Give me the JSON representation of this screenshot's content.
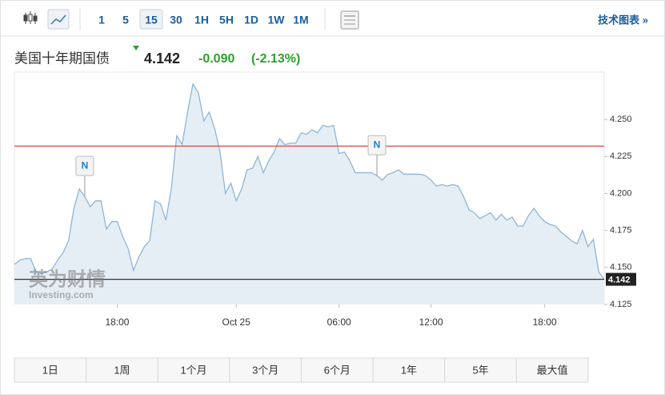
{
  "toolbar": {
    "intervals": [
      "1",
      "5",
      "15",
      "30",
      "1H",
      "5H",
      "1D",
      "1W",
      "1M"
    ],
    "selected_interval": 2,
    "link": "技术图表 »"
  },
  "header": {
    "name": "美国十年期国债",
    "price": 4.142,
    "change": "-0.090",
    "change_pct": "(-2.13%)",
    "color": "#2ca02c"
  },
  "chart_data": {
    "type": "area",
    "color": "#8db6d6",
    "fill": "#e6eef5",
    "values": [
      4.152,
      4.155,
      4.156,
      4.156,
      4.147,
      4.146,
      4.147,
      4.149,
      4.155,
      4.16,
      4.168,
      4.19,
      4.203,
      4.198,
      4.191,
      4.195,
      4.195,
      4.176,
      4.181,
      4.181,
      4.171,
      4.163,
      4.148,
      4.157,
      4.164,
      4.168,
      4.195,
      4.193,
      4.182,
      4.203,
      4.239,
      4.233,
      4.255,
      4.274,
      4.268,
      4.249,
      4.255,
      4.244,
      4.228,
      4.2,
      4.207,
      4.195,
      4.203,
      4.216,
      4.217,
      4.225,
      4.214,
      4.222,
      4.228,
      4.237,
      4.233,
      4.234,
      4.234,
      4.241,
      4.24,
      4.243,
      4.241,
      4.246,
      4.245,
      4.246,
      4.227,
      4.228,
      4.222,
      4.214,
      4.214,
      4.214,
      4.214,
      4.212,
      4.209,
      4.213,
      4.214,
      4.216,
      4.213,
      4.213,
      4.213,
      4.213,
      4.212,
      4.209,
      4.205,
      4.206,
      4.205,
      4.206,
      4.205,
      4.198,
      4.189,
      4.187,
      4.183,
      4.185,
      4.187,
      4.182,
      4.186,
      4.182,
      4.184,
      4.178,
      4.178,
      4.185,
      4.19,
      4.185,
      4.181,
      4.179,
      4.178,
      4.174,
      4.171,
      4.168,
      4.166,
      4.175,
      4.164,
      4.169,
      4.147,
      4.142
    ],
    "xlim": [
      0,
      109
    ],
    "xticks": [
      {
        "value": 19,
        "label": "18:00"
      },
      {
        "value": 41,
        "label": "Oct 25"
      },
      {
        "value": 60,
        "label": "06:00"
      },
      {
        "value": 77,
        "label": "12:00"
      },
      {
        "value": 98,
        "label": "18:00"
      }
    ],
    "ylim": [
      4.125,
      4.282
    ],
    "yticks": [
      4.125,
      {
        "value": 4.15,
        "label": "4.150"
      },
      4.175,
      {
        "value": 4.2,
        "label": "4.200"
      },
      4.225,
      {
        "value": 4.25,
        "label": "4.250"
      }
    ],
    "reference_lines": [
      {
        "value": 4.232,
        "color": "#e04646"
      },
      {
        "value": 4.142,
        "color": "#333333"
      }
    ],
    "annotations": [
      {
        "label": "N",
        "index": 13
      },
      {
        "label": "N",
        "index": 67
      }
    ],
    "watermark": [
      "英为财情",
      "Investing.com"
    ]
  },
  "ranges": [
    "1日",
    "1周",
    "1个月",
    "3个月",
    "6个月",
    "1年",
    "5年",
    "最大值"
  ]
}
